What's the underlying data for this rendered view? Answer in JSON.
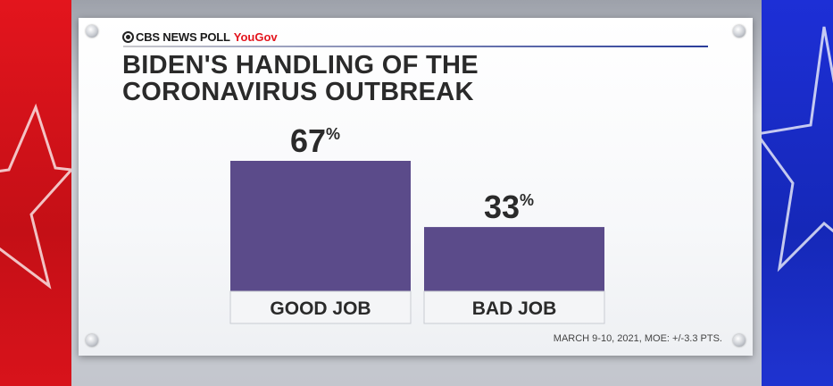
{
  "brand": {
    "network": "CBS NEWS POLL",
    "partner": "YouGov"
  },
  "title_lines": [
    "BIDEN'S HANDLING OF THE",
    "CORONAVIRUS OUTBREAK"
  ],
  "footnote": "MARCH 9-10, 2021, MOE: +/-3.3 PTS.",
  "colors": {
    "bar": "#5b4b8a",
    "red_bg": "#e3151d",
    "blue_bg": "#1d2fd6",
    "title": "#2a2a2a"
  },
  "chart_data": {
    "type": "bar",
    "categories": [
      "GOOD JOB",
      "BAD JOB"
    ],
    "values": [
      67,
      33
    ],
    "value_labels": [
      "67",
      "33"
    ],
    "value_suffix": "%",
    "ylim": [
      0,
      67
    ],
    "grid": false
  }
}
